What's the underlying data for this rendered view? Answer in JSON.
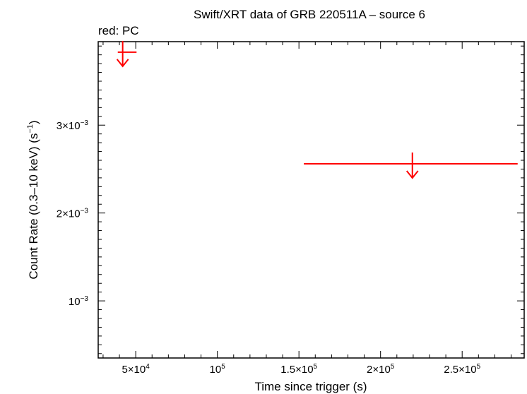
{
  "chart_data": {
    "type": "scatter",
    "title": "Swift/XRT data of GRB 220511A – source 6",
    "legend_note": "red: PC",
    "xlabel": "Time since trigger (s)",
    "ylabel": "Count Rate (0.3–10 keV) (s",
    "ylabel_sup": "−1",
    "ylabel_tail": ")",
    "xlim": [
      27000,
      288000
    ],
    "ylim": [
      0.00035,
      0.00395
    ],
    "x_scale": "linear",
    "y_scale": "linear",
    "grid": false,
    "series_color": "#ff0000",
    "x_ticks": [
      {
        "value": 50000,
        "mantissa": "5×10",
        "exp": "4"
      },
      {
        "value": 100000,
        "mantissa": "10",
        "exp": "5"
      },
      {
        "value": 150000,
        "mantissa": "1.5×10",
        "exp": "5"
      },
      {
        "value": 200000,
        "mantissa": "2×10",
        "exp": "5"
      },
      {
        "value": 250000,
        "mantissa": "2.5×10",
        "exp": "5"
      }
    ],
    "y_ticks": [
      {
        "value": 0.001,
        "mantissa": "10",
        "exp": "−3"
      },
      {
        "value": 0.002,
        "mantissa": "2×10",
        "exp": "−3"
      },
      {
        "value": 0.003,
        "mantissa": "3×10",
        "exp": "−3"
      }
    ],
    "points": [
      {
        "mode": "PC",
        "upper_limit": true,
        "x": 42000,
        "x_lo": 39000,
        "x_hi": 50500,
        "y": 0.00383
      },
      {
        "mode": "PC",
        "upper_limit": true,
        "x": 219500,
        "x_lo": 153000,
        "x_hi": 284000,
        "y": 0.00256
      }
    ]
  }
}
